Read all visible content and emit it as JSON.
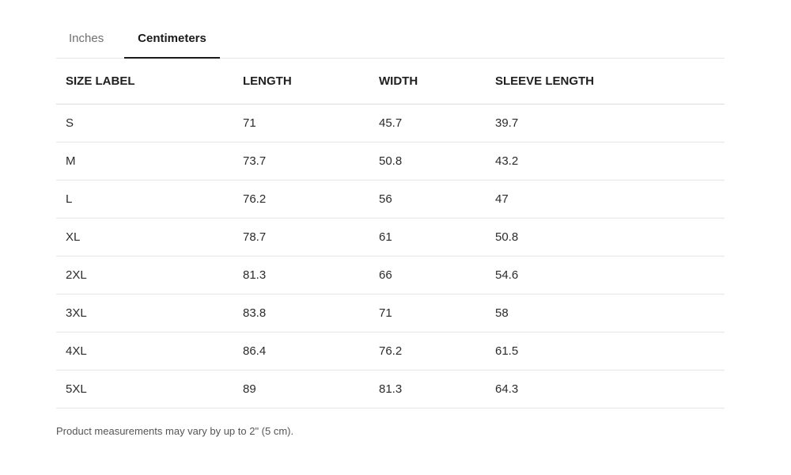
{
  "tabs": [
    {
      "label": "Inches",
      "active": false
    },
    {
      "label": "Centimeters",
      "active": true
    }
  ],
  "table": {
    "headers": [
      "SIZE LABEL",
      "LENGTH",
      "WIDTH",
      "SLEEVE LENGTH"
    ],
    "rows": [
      [
        "S",
        "71",
        "45.7",
        "39.7"
      ],
      [
        "M",
        "73.7",
        "50.8",
        "43.2"
      ],
      [
        "L",
        "76.2",
        "56",
        "47"
      ],
      [
        "XL",
        "78.7",
        "61",
        "50.8"
      ],
      [
        "2XL",
        "81.3",
        "66",
        "54.6"
      ],
      [
        "3XL",
        "83.8",
        "71",
        "58"
      ],
      [
        "4XL",
        "86.4",
        "76.2",
        "61.5"
      ],
      [
        "5XL",
        "89",
        "81.3",
        "64.3"
      ]
    ]
  },
  "note": "Product measurements may vary by up to 2\" (5 cm)."
}
